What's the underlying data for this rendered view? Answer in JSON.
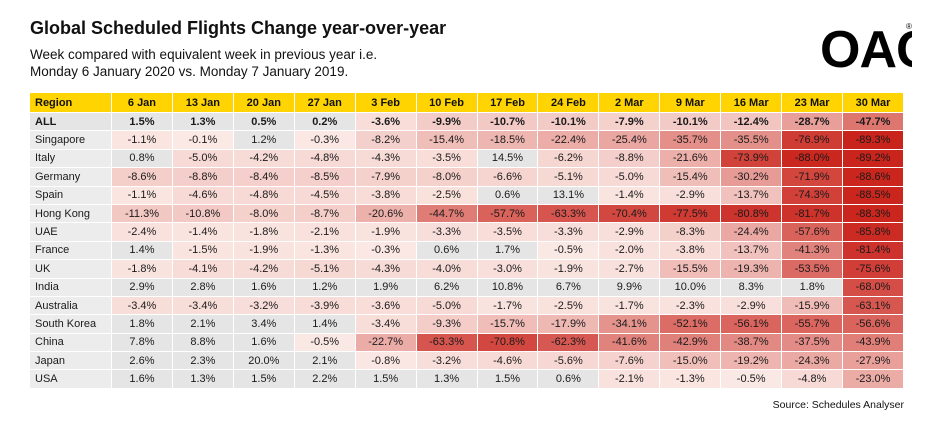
{
  "title": "Global Scheduled Flights Change year-over-year",
  "subtitle": [
    "Week compared with equivalent week in previous year i.e.",
    "Monday 6 January 2020 vs. Monday 7 January 2019."
  ],
  "logo": "OAG",
  "source": "Source: Schedules Analyser",
  "colors": {
    "header": "#ffd400",
    "neutral": "#e5e5e5",
    "low": "#fbeae6",
    "high": "#c9231b"
  },
  "chart_data": {
    "type": "table",
    "columns": [
      "Region",
      "6 Jan",
      "13 Jan",
      "20 Jan",
      "27 Jan",
      "3 Feb",
      "10 Feb",
      "17 Feb",
      "24 Feb",
      "2 Mar",
      "9 Mar",
      "16 Mar",
      "23 Mar",
      "30 Mar"
    ],
    "rows": [
      {
        "region": "ALL",
        "values": [
          1.5,
          1.3,
          0.5,
          0.2,
          -3.6,
          -9.9,
          -10.7,
          -10.1,
          -7.9,
          -10.1,
          -12.4,
          -28.7,
          -47.7
        ]
      },
      {
        "region": "Singapore",
        "values": [
          -1.1,
          -0.1,
          1.2,
          -0.3,
          -8.2,
          -15.4,
          -18.5,
          -22.4,
          -25.4,
          -35.7,
          -35.5,
          -76.9,
          -89.3
        ]
      },
      {
        "region": "Italy",
        "values": [
          0.8,
          -5.0,
          -4.2,
          -4.8,
          -4.3,
          -3.5,
          14.5,
          -6.2,
          -8.8,
          -21.6,
          -73.9,
          -88.0,
          -89.2
        ]
      },
      {
        "region": "Germany",
        "values": [
          -8.6,
          -8.8,
          -8.4,
          -8.5,
          -7.9,
          -8.0,
          -6.6,
          -5.1,
          -5.0,
          -15.4,
          -30.2,
          -71.9,
          -88.6
        ]
      },
      {
        "region": "Spain",
        "values": [
          -1.1,
          -4.6,
          -4.8,
          -4.5,
          -3.8,
          -2.5,
          0.6,
          13.1,
          -1.4,
          -2.9,
          -13.7,
          -74.3,
          -88.5
        ]
      },
      {
        "region": "Hong Kong",
        "values": [
          -11.3,
          -10.8,
          -8.0,
          -8.7,
          -20.6,
          -44.7,
          -57.7,
          -63.3,
          -70.4,
          -77.5,
          -80.8,
          -81.7,
          -88.3
        ]
      },
      {
        "region": "UAE",
        "values": [
          -2.4,
          -1.4,
          -1.8,
          -2.1,
          -1.9,
          -3.3,
          -3.5,
          -3.3,
          -2.9,
          -8.3,
          -24.4,
          -57.6,
          -85.8
        ]
      },
      {
        "region": "France",
        "values": [
          1.4,
          -1.5,
          -1.9,
          -1.3,
          -0.3,
          0.6,
          1.7,
          -0.5,
          -2.0,
          -3.8,
          -13.7,
          -41.3,
          -81.4
        ]
      },
      {
        "region": "UK",
        "values": [
          -1.8,
          -4.1,
          -4.2,
          -5.1,
          -4.3,
          -4.0,
          -3.0,
          -1.9,
          -2.7,
          -15.5,
          -19.3,
          -53.5,
          -75.6
        ]
      },
      {
        "region": "India",
        "values": [
          2.9,
          2.8,
          1.6,
          1.2,
          1.9,
          6.2,
          10.8,
          6.7,
          9.9,
          10.0,
          8.3,
          1.8,
          -68.0
        ]
      },
      {
        "region": "Australia",
        "values": [
          -3.4,
          -3.4,
          -3.2,
          -3.9,
          -3.6,
          -5.0,
          -1.7,
          -2.5,
          -1.7,
          -2.3,
          -2.9,
          -15.9,
          -63.1
        ]
      },
      {
        "region": "South Korea",
        "values": [
          1.8,
          2.1,
          3.4,
          1.4,
          -3.4,
          -9.3,
          -15.7,
          -17.9,
          -34.1,
          -52.1,
          -56.1,
          -55.7,
          -56.6
        ]
      },
      {
        "region": "China",
        "values": [
          7.8,
          8.8,
          1.6,
          -0.5,
          -22.7,
          -63.3,
          -70.8,
          -62.3,
          -41.6,
          -42.9,
          -38.7,
          -37.5,
          -43.9
        ]
      },
      {
        "region": "Japan",
        "values": [
          2.6,
          2.3,
          20.0,
          2.1,
          -0.8,
          -3.2,
          -4.6,
          -5.6,
          -7.6,
          -15.0,
          -19.2,
          -24.3,
          -27.9
        ]
      },
      {
        "region": "USA",
        "values": [
          1.6,
          1.3,
          1.5,
          2.2,
          1.5,
          1.3,
          1.5,
          0.6,
          -2.1,
          -1.3,
          -0.5,
          -4.8,
          -23.0
        ]
      }
    ],
    "unit": "%"
  }
}
